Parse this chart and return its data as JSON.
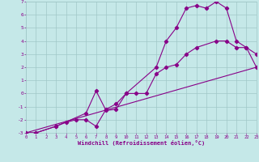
{
  "xlabel": "Windchill (Refroidissement éolien,°C)",
  "xlim": [
    0,
    23
  ],
  "ylim": [
    -3,
    7
  ],
  "xticks": [
    0,
    1,
    2,
    3,
    4,
    5,
    6,
    7,
    8,
    9,
    10,
    11,
    12,
    13,
    14,
    15,
    16,
    17,
    18,
    19,
    20,
    21,
    22,
    23
  ],
  "yticks": [
    -3,
    -2,
    -1,
    0,
    1,
    2,
    3,
    4,
    5,
    6,
    7
  ],
  "bg_color": "#c5e8e8",
  "line_color": "#880088",
  "grid_color": "#a0c8c8",
  "line1_x": [
    0,
    1,
    3,
    6,
    7,
    8,
    9,
    10,
    13,
    14,
    15,
    16,
    17,
    18,
    19,
    20,
    21,
    22,
    23
  ],
  "line1_y": [
    -3,
    -3,
    -2.5,
    -1.5,
    0.2,
    -1.3,
    -1.2,
    0,
    2,
    4,
    5,
    6.5,
    6.7,
    6.5,
    7,
    6.5,
    4,
    3.5,
    3
  ],
  "line2_x": [
    0,
    1,
    3,
    4,
    5,
    6,
    7,
    8,
    9,
    10,
    11,
    12,
    13,
    14,
    15,
    16,
    17,
    19,
    20,
    21,
    22,
    23
  ],
  "line2_y": [
    -3,
    -3,
    -2.5,
    -2.2,
    -2,
    -2,
    -2.5,
    -1.2,
    -0.8,
    0,
    0,
    0,
    1.5,
    2,
    2.2,
    3,
    3.5,
    4,
    4,
    3.5,
    3.5,
    2
  ],
  "line3_x": [
    0,
    23
  ],
  "line3_y": [
    -3,
    2
  ],
  "marker": "D",
  "markersize": 2.2,
  "linewidth": 0.8
}
